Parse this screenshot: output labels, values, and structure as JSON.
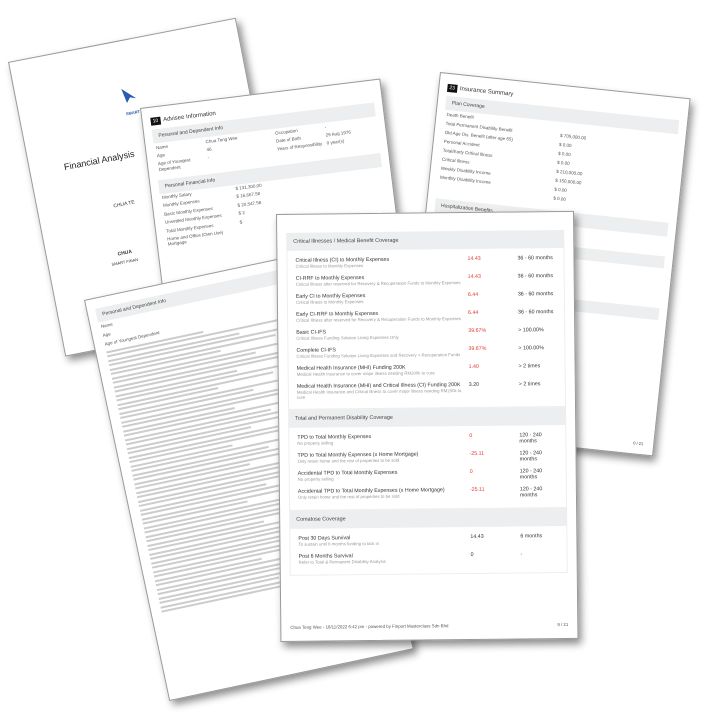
{
  "cover": {
    "title": "Financial Analysis",
    "logo_text": "SMART",
    "client": "CHUA TE",
    "name": "CHUA",
    "company": "SMART FINAN"
  },
  "advisee": {
    "number": "10",
    "title": "Advisee Information",
    "section1": "Personal and Dependent Info",
    "rows1": [
      {
        "label": "Name",
        "value": "Chua Teng Wee"
      },
      {
        "label": "Age",
        "value": "46"
      },
      {
        "label": "Age of Youngest Dependent",
        "value": "-"
      }
    ],
    "rows1b": [
      {
        "label": "Occupation",
        "value": "-"
      },
      {
        "label": "Date of Birth",
        "value": "29 Aug 1976"
      },
      {
        "label": "Years of Responsibility",
        "value": "0 year(s)"
      }
    ],
    "section2": "Personal Financial Info",
    "rows2": [
      {
        "label": "Monthly Salary",
        "value": "$ 131,300.00"
      },
      {
        "label": "Monthly Expenses",
        "value": "$ 16,667.58"
      },
      {
        "label": "Basic Monthly Expenses",
        "value": "$ 20,547.58"
      },
      {
        "label": "Unsettled Monthly Expenses",
        "value": "$ 2"
      },
      {
        "label": "Total Monthly Expenses",
        "value": "$"
      },
      {
        "label": "Home and Office (Own Use) Mortgage",
        "value": ""
      }
    ]
  },
  "insurance": {
    "number": "23",
    "title": "Insurance Summary",
    "section1": "Plan Coverage",
    "rows": [
      {
        "label": "Death Benefit",
        "value": ""
      },
      {
        "label": "Total Permanent Disability Benefit",
        "value": "$ 705,000.00"
      },
      {
        "label": "Old Age Dis. Benefit (after age 65)",
        "value": "$ 0.00"
      },
      {
        "label": "Personal Accident",
        "value": "$ 0.00"
      },
      {
        "label": "Total/Early Critical Illness",
        "value": "$ 0.00"
      },
      {
        "label": "Critical Illness",
        "value": "$ 210,000.00"
      },
      {
        "label": "Weekly Disability Income",
        "value": "$ 150,000.00"
      },
      {
        "label": "Monthly Disability Income",
        "value": "$ 0.00"
      },
      {
        "label": "",
        "value": "$ 0.00"
      }
    ],
    "section2": "Hospitalization Benefits",
    "page": "0 / 21"
  },
  "table_page": {
    "section": "Personal and Dependent Info",
    "rows": [
      {
        "label": "Name"
      },
      {
        "label": "Age"
      },
      {
        "label": "Age of Youngest Dependent"
      }
    ]
  },
  "front": {
    "sections": [
      {
        "title": "Critical Illnesses / Medical Benefit Coverage",
        "items": [
          {
            "label": "Critical Illness (CI) to Monthly Expenses",
            "sub": "Critical Illness to Monthly Expenses",
            "value": "14.43",
            "red": true,
            "range": "36 - 60 months"
          },
          {
            "label": "CI-RRF to Monthly Expenses",
            "sub": "Critical Illness after reserved for Recovery & Recuperation Funds to Monthly Expenses",
            "value": "14.43",
            "red": true,
            "range": "36 - 60 months"
          },
          {
            "label": "Early CI to Monthly Expenses",
            "sub": "Critical Illness to Monthly Expenses",
            "value": "6.44",
            "red": true,
            "range": "36 - 60 months"
          },
          {
            "label": "Early CI-RRF to Monthly Expenses",
            "sub": "Critical Illness after reserved for Recovery & Recuperation Funds to Monthly Expenses",
            "value": "6.44",
            "red": true,
            "range": "36 - 60 months"
          },
          {
            "label": "Basic CI-IFS",
            "sub": "Critical Illness Funding Solution Living Expenses Only",
            "value": "39.67%",
            "red": true,
            "range": "> 100.00%"
          },
          {
            "label": "Complete CI-IFS",
            "sub": "Critical Illness Funding Solution Living Expenses and Recovery + Recuperation Funds",
            "value": "39.67%",
            "red": true,
            "range": "> 100.00%"
          },
          {
            "label": "Medical Health Insurance (MHI) Funding 200K",
            "sub": "Medical Health Insurance to cover major illness needing RM200k to cure",
            "value": "1.40",
            "red": true,
            "range": "> 2 times"
          },
          {
            "label": "Medical Health Insurance (MHI) and Critical Illness (CI) Funding 200K",
            "sub": "Medical Health Insurance and Critical Illness to cover major illness needing RM200k to cure",
            "value": "3.20",
            "red": false,
            "range": "> 2 times"
          }
        ]
      },
      {
        "title": "Total and Permanent Disability Coverage",
        "items": [
          {
            "label": "TPD to Total Monthly Expenses",
            "sub": "No property selling",
            "value": "0",
            "red": true,
            "range": "120 - 240 months"
          },
          {
            "label": "TPD to Total Monthly Expenses (x Home Mortgage)",
            "sub": "Only retain home and the rest of properties to be sold",
            "value": "-25.11",
            "red": true,
            "range": "120 - 240 months"
          },
          {
            "label": "Accidental TPD to Total Monthly Expenses",
            "sub": "No property selling",
            "value": "0",
            "red": true,
            "range": "120 - 240 months"
          },
          {
            "label": "Accidental TPD to Total Monthly Expenses (x Home Mortgage)",
            "sub": "Only retain home and the rest of properties to be sold",
            "value": "-25.11",
            "red": true,
            "range": "120 - 240 months"
          }
        ]
      },
      {
        "title": "Comatose Coverage",
        "items": [
          {
            "label": "Post 30 Days Survival",
            "sub": "To sustain until 6 months funding to kick in",
            "value": "14.43",
            "red": false,
            "range": "6 months"
          },
          {
            "label": "Post 6 Months Survival",
            "sub": "Refer to Total & Permanent Disability Analysis",
            "value": "0",
            "red": false,
            "range": "-"
          }
        ]
      }
    ],
    "footer_left": "Chua Teng Wee - 16/11/2022 6:42 pm - powered by Finport Masterclass Sdn Bhd",
    "footer_right": "9 / 21",
    "colors": {
      "red": "#e53935",
      "section_bg": "#eceeef"
    }
  }
}
